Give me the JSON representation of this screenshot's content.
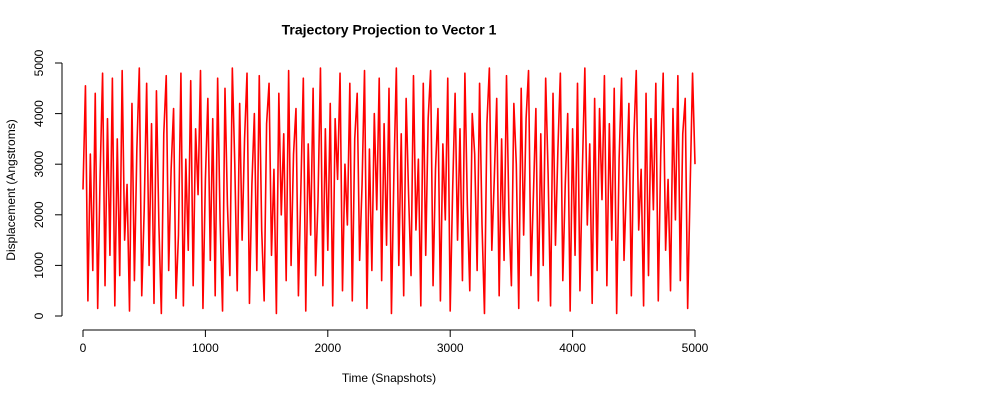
{
  "chart_data": {
    "type": "line",
    "title": "Trajectory Projection to Vector 1",
    "x_label": "Time (Snapshots)",
    "y_label": "Displacement (Angstroms)",
    "color": "#ff0000",
    "xlim": [
      0,
      5000
    ],
    "xticks": [
      0,
      1000,
      2000,
      3000,
      4000,
      5000
    ],
    "ylim": [
      0,
      5000
    ],
    "yticks": [
      0,
      1000,
      2000,
      3000,
      4000,
      5000
    ],
    "x": [
      0,
      20,
      40,
      60,
      80,
      100,
      120,
      140,
      160,
      180,
      200,
      220,
      240,
      260,
      280,
      300,
      320,
      340,
      360,
      380,
      400,
      420,
      440,
      460,
      480,
      500,
      520,
      540,
      560,
      580,
      600,
      620,
      640,
      660,
      680,
      700,
      720,
      740,
      760,
      780,
      800,
      820,
      840,
      860,
      880,
      900,
      920,
      940,
      960,
      980,
      1000,
      1020,
      1040,
      1060,
      1080,
      1100,
      1120,
      1140,
      1160,
      1180,
      1200,
      1220,
      1240,
      1260,
      1280,
      1300,
      1320,
      1340,
      1360,
      1380,
      1400,
      1420,
      1440,
      1460,
      1480,
      1500,
      1520,
      1540,
      1560,
      1580,
      1600,
      1620,
      1640,
      1660,
      1680,
      1700,
      1720,
      1740,
      1760,
      1780,
      1800,
      1820,
      1840,
      1860,
      1880,
      1900,
      1920,
      1940,
      1960,
      1980,
      2000,
      2020,
      2040,
      2060,
      2080,
      2100,
      2120,
      2140,
      2160,
      2180,
      2200,
      2220,
      2240,
      2260,
      2280,
      2300,
      2320,
      2340,
      2360,
      2380,
      2400,
      2420,
      2440,
      2460,
      2480,
      2500,
      2520,
      2540,
      2560,
      2580,
      2600,
      2620,
      2640,
      2660,
      2680,
      2700,
      2720,
      2740,
      2760,
      2780,
      2800,
      2820,
      2840,
      2860,
      2880,
      2900,
      2920,
      2940,
      2960,
      2980,
      3000,
      3020,
      3040,
      3060,
      3080,
      3100,
      3120,
      3140,
      3160,
      3180,
      3200,
      3220,
      3240,
      3260,
      3280,
      3300,
      3320,
      3340,
      3360,
      3380,
      3400,
      3420,
      3440,
      3460,
      3480,
      3500,
      3520,
      3540,
      3560,
      3580,
      3600,
      3620,
      3640,
      3660,
      3680,
      3700,
      3720,
      3740,
      3760,
      3780,
      3800,
      3820,
      3840,
      3860,
      3880,
      3900,
      3920,
      3940,
      3960,
      3980,
      4000,
      4020,
      4040,
      4060,
      4080,
      4100,
      4120,
      4140,
      4160,
      4180,
      4200,
      4220,
      4240,
      4260,
      4280,
      4300,
      4320,
      4340,
      4360,
      4380,
      4400,
      4420,
      4440,
      4460,
      4480,
      4500,
      4520,
      4540,
      4560,
      4580,
      4600,
      4620,
      4640,
      4660,
      4680,
      4700,
      4720,
      4740,
      4760,
      4780,
      4800,
      4820,
      4840,
      4860,
      4880,
      4900,
      4920,
      4940,
      4960,
      4980,
      5000
    ],
    "values": [
      2500,
      4550,
      300,
      3200,
      900,
      4400,
      150,
      2800,
      4800,
      600,
      3900,
      1200,
      4700,
      200,
      3500,
      800,
      4850,
      1500,
      2600,
      100,
      4200,
      700,
      3300,
      4900,
      400,
      2100,
      4600,
      1000,
      3800,
      250,
      4450,
      1800,
      50,
      3600,
      4750,
      900,
      2900,
      4100,
      350,
      1600,
      4800,
      200,
      3100,
      1300,
      4650,
      600,
      3700,
      2400,
      4850,
      150,
      2700,
      4300,
      1100,
      3900,
      400,
      4700,
      1900,
      100,
      4500,
      2200,
      800,
      4900,
      3000,
      500,
      4200,
      1500,
      3500,
      4800,
      250,
      2600,
      4000,
      900,
      4750,
      1700,
      300,
      3800,
      4600,
      1200,
      2900,
      50,
      4400,
      2000,
      3600,
      700,
      4850,
      1000,
      3200,
      4100,
      400,
      2500,
      4700,
      100,
      3400,
      1600,
      4500,
      800,
      2300,
      4900,
      600,
      3700,
      1300,
      4200,
      200,
      3900,
      2700,
      4800,
      500,
      3000,
      1800,
      4600,
      300,
      3500,
      4400,
      1100,
      2600,
      4850,
      150,
      3300,
      900,
      4000,
      2100,
      4700,
      700,
      3800,
      1400,
      4500,
      50,
      2800,
      4900,
      1000,
      3600,
      400,
      4300,
      2400,
      800,
      4750,
      1700,
      3100,
      200,
      4600,
      1200,
      3900,
      4850,
      600,
      2900,
      4100,
      300,
      3400,
      1900,
      4700,
      100,
      2500,
      4400,
      1500,
      3700,
      700,
      4800,
      2200,
      500,
      4000,
      3200,
      900,
      4600,
      1800,
      50,
      3800,
      4900,
      1300,
      2700,
      4300,
      400,
      3500,
      1100,
      4750,
      2000,
      600,
      4200,
      3000,
      150,
      4500,
      1600,
      3900,
      4850,
      800,
      2400,
      4100,
      300,
      3600,
      1000,
      4700,
      2800,
      200,
      4400,
      1400,
      3300,
      4800,
      700,
      2600,
      4000,
      100,
      3700,
      1200,
      4600,
      500,
      2900,
      4900,
      1800,
      3400,
      250,
      4300,
      900,
      4100,
      2300,
      4750,
      600,
      3800,
      1500,
      4500,
      50,
      3100,
      4700,
      1100,
      2600,
      4200,
      400,
      3500,
      4850,
      1700,
      2900,
      200,
      4400,
      800,
      3900,
      2100,
      4600,
      300,
      3200,
      4800,
      1300,
      2700,
      500,
      4100,
      1900,
      4750,
      700,
      3600,
      4300,
      150,
      2500,
      4800,
      3000
    ]
  }
}
